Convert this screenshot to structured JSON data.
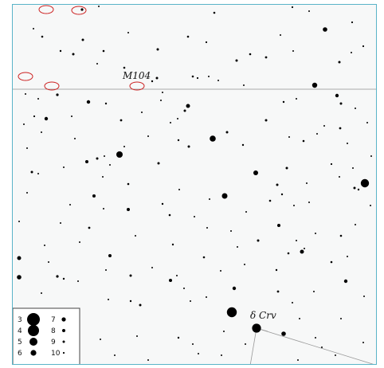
{
  "colors": {
    "frame_border": "#5ab4c8",
    "background": "#f7f8f8",
    "star": "#000000",
    "ecliptic_line": "#aaaaaa",
    "constellation_line": "#999999",
    "galaxy_outline": "#cc2222",
    "label_text": "#111111"
  },
  "labels": {
    "deep_sky_object": "M104",
    "star_name": "δ Crv"
  },
  "legend": {
    "magnitudes": [
      {
        "mag": "3",
        "size": 8
      },
      {
        "mag": "4",
        "size": 7
      },
      {
        "mag": "5",
        "size": 5
      },
      {
        "mag": "6",
        "size": 3.6
      },
      {
        "mag": "7",
        "size": 2.6
      },
      {
        "mag": "8",
        "size": 2
      },
      {
        "mag": "9",
        "size": 1.5
      },
      {
        "mag": "10",
        "size": 1.1
      }
    ]
  }
}
